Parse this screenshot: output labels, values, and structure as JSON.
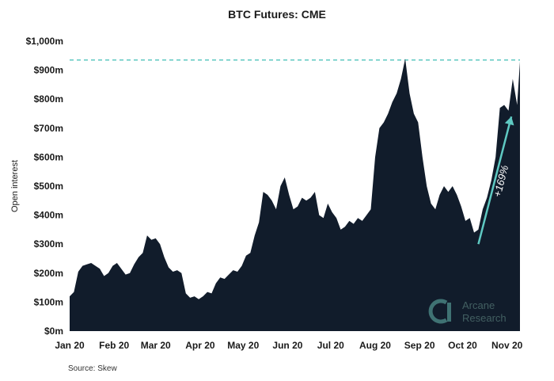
{
  "chart_data": {
    "type": "area",
    "title": "BTC Futures: CME",
    "ylabel": "Open interest",
    "xlabel": "",
    "ylim": [
      0,
      1000
    ],
    "y_unit": "m",
    "yticks": [
      "$0m",
      "$100m",
      "$200m",
      "$300m",
      "$400m",
      "$500m",
      "$600m",
      "$700m",
      "$800m",
      "$900m",
      "$1,000m"
    ],
    "xticks": [
      "Jan 20",
      "Feb 20",
      "Mar 20",
      "Apr 20",
      "May 20",
      "Jun 20",
      "Jul 20",
      "Aug 20",
      "Sep 20",
      "Oct 20",
      "Nov 20"
    ],
    "fill_color": "#111c2b",
    "reference_line": {
      "value": 935,
      "color": "#5fc9c2",
      "style": "dashed"
    },
    "annotation": {
      "text": "+169%",
      "color": "#5fc9c2"
    },
    "series": [
      {
        "x": [
          "2020-01-01",
          "2020-01-04",
          "2020-01-07",
          "2020-01-10",
          "2020-01-13",
          "2020-01-16",
          "2020-01-19",
          "2020-01-22",
          "2020-01-25",
          "2020-01-28",
          "2020-01-31",
          "2020-02-03",
          "2020-02-06",
          "2020-02-09",
          "2020-02-12",
          "2020-02-15",
          "2020-02-18",
          "2020-02-21",
          "2020-02-24",
          "2020-02-27",
          "2020-03-01",
          "2020-03-04",
          "2020-03-07",
          "2020-03-10",
          "2020-03-13",
          "2020-03-16",
          "2020-03-19",
          "2020-03-22",
          "2020-03-25",
          "2020-03-28",
          "2020-03-31",
          "2020-04-03",
          "2020-04-06",
          "2020-04-09",
          "2020-04-12",
          "2020-04-15",
          "2020-04-18",
          "2020-04-21",
          "2020-04-24",
          "2020-04-27",
          "2020-04-30",
          "2020-05-03",
          "2020-05-06",
          "2020-05-09",
          "2020-05-12",
          "2020-05-15",
          "2020-05-18",
          "2020-05-21",
          "2020-05-24",
          "2020-05-27",
          "2020-05-30",
          "2020-06-02",
          "2020-06-05",
          "2020-06-08",
          "2020-06-11",
          "2020-06-14",
          "2020-06-17",
          "2020-06-20",
          "2020-06-23",
          "2020-06-26",
          "2020-06-29",
          "2020-07-02",
          "2020-07-05",
          "2020-07-08",
          "2020-07-11",
          "2020-07-14",
          "2020-07-17",
          "2020-07-20",
          "2020-07-23",
          "2020-07-26",
          "2020-07-29",
          "2020-08-01",
          "2020-08-04",
          "2020-08-07",
          "2020-08-10",
          "2020-08-13",
          "2020-08-16",
          "2020-08-19",
          "2020-08-22",
          "2020-08-25",
          "2020-08-28",
          "2020-08-31",
          "2020-09-03",
          "2020-09-06",
          "2020-09-09",
          "2020-09-12",
          "2020-09-15",
          "2020-09-18",
          "2020-09-21",
          "2020-09-24",
          "2020-09-27",
          "2020-09-30",
          "2020-10-03",
          "2020-10-06",
          "2020-10-09",
          "2020-10-12",
          "2020-10-15",
          "2020-10-18",
          "2020-10-21",
          "2020-10-24",
          "2020-10-27",
          "2020-10-30",
          "2020-11-02",
          "2020-11-05",
          "2020-11-08",
          "2020-11-10"
        ],
        "values": [
          120,
          135,
          205,
          225,
          230,
          235,
          225,
          215,
          190,
          200,
          225,
          235,
          215,
          195,
          200,
          230,
          255,
          270,
          330,
          315,
          320,
          300,
          255,
          220,
          205,
          210,
          200,
          130,
          115,
          120,
          110,
          120,
          135,
          130,
          165,
          185,
          180,
          195,
          210,
          205,
          225,
          260,
          270,
          330,
          375,
          480,
          470,
          450,
          420,
          500,
          530,
          470,
          420,
          430,
          460,
          450,
          460,
          480,
          400,
          390,
          440,
          410,
          390,
          350,
          360,
          380,
          370,
          390,
          380,
          400,
          420,
          600,
          700,
          720,
          750,
          790,
          820,
          870,
          940,
          820,
          750,
          720,
          600,
          500,
          440,
          420,
          470,
          500,
          480,
          500,
          470,
          430,
          380,
          390,
          340,
          350,
          420,
          460,
          520,
          600,
          770,
          780,
          760,
          870,
          780,
          930
        ]
      }
    ]
  },
  "source_text": "Source: Skew",
  "brand": {
    "line1": "Arcane",
    "line2": "Research"
  }
}
